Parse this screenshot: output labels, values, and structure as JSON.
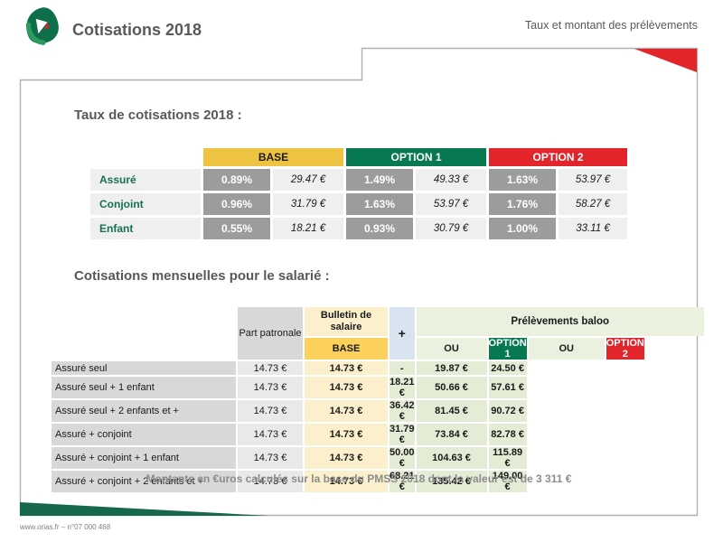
{
  "header": {
    "title": "Cotisations 2018",
    "subtitle": "Taux et montant des prélèvements"
  },
  "section1": {
    "title": "Taux de cotisations 2018 :",
    "table": {
      "columns": [
        "BASE",
        "OPTION 1",
        "OPTION 2"
      ],
      "rows": [
        {
          "label": "Assuré",
          "values": [
            {
              "pct": "0.89%",
              "eur": "29.47 €"
            },
            {
              "pct": "1.49%",
              "eur": "49.33 €"
            },
            {
              "pct": "1.63%",
              "eur": "53.97 €"
            }
          ]
        },
        {
          "label": "Conjoint",
          "values": [
            {
              "pct": "0.96%",
              "eur": "31.79 €"
            },
            {
              "pct": "1.63%",
              "eur": "53.97 €"
            },
            {
              "pct": "1.76%",
              "eur": "58.27 €"
            }
          ]
        },
        {
          "label": "Enfant",
          "values": [
            {
              "pct": "0.55%",
              "eur": "18.21 €"
            },
            {
              "pct": "0.93%",
              "eur": "30.79 €"
            },
            {
              "pct": "1.00%",
              "eur": "33.11 €"
            }
          ]
        }
      ]
    }
  },
  "section2": {
    "title": "Cotisations mensuelles pour le salarié :",
    "table": {
      "col_part": "Part patronale",
      "col_bulletin": "Bulletin de salaire",
      "group_header": "Prélèvements baloo",
      "sub_headers": [
        "BASE",
        "OPTION 1",
        "OPTION 2"
      ],
      "plus": "+",
      "ou": "OU",
      "rows": [
        {
          "label": "Assuré seul",
          "part": "14.73 €",
          "bulletin": "14.73 €",
          "base": "-",
          "option1": "19.87 €",
          "option2": "24.50 €"
        },
        {
          "label": "Assuré seul + 1 enfant",
          "part": "14.73 €",
          "bulletin": "14.73 €",
          "base": "18.21 €",
          "option1": "50.66 €",
          "option2": "57.61 €"
        },
        {
          "label": "Assuré seul + 2 enfants et +",
          "part": "14.73 €",
          "bulletin": "14.73 €",
          "base": "36.42 €",
          "option1": "81.45 €",
          "option2": "90.72 €"
        },
        {
          "label": "Assuré + conjoint",
          "part": "14.73 €",
          "bulletin": "14.73 €",
          "base": "31.79 €",
          "option1": "73.84 €",
          "option2": "82.78 €"
        },
        {
          "label": "Assuré + conjoint + 1 enfant",
          "part": "14.73 €",
          "bulletin": "14.73 €",
          "base": "50.00 €",
          "option1": "104.63 €",
          "option2": "115.89 €"
        },
        {
          "label": "Assuré + conjoint + 2 enfants et +",
          "part": "14.73 €",
          "bulletin": "14.73 €",
          "base": "68.21 €",
          "option1": "135.42 €",
          "option2": "149.00 €"
        }
      ]
    }
  },
  "footer": {
    "note": "Montants en €uros calculés sur la base du PMSS 2018 dont la valeur est de 3 311 €",
    "legal": "www.orias.fr – n°07 000 468"
  },
  "colors": {
    "base_gold": "#EFC342",
    "base_gold_light": "#FBD15B",
    "option1_green": "#077950",
    "option2_red": "#E2242B",
    "pct_gray": "#9C9C9C",
    "label_green_text": "#15714E",
    "cream": "#FCF0CC",
    "light_blue": "#D8E4F0",
    "light_green_panel": "#EAF1DF",
    "green_value": "#E4ECD6",
    "wedge_green": "#16684A",
    "frame_gray": "#B0B0B0",
    "title_gray": "#595959"
  }
}
